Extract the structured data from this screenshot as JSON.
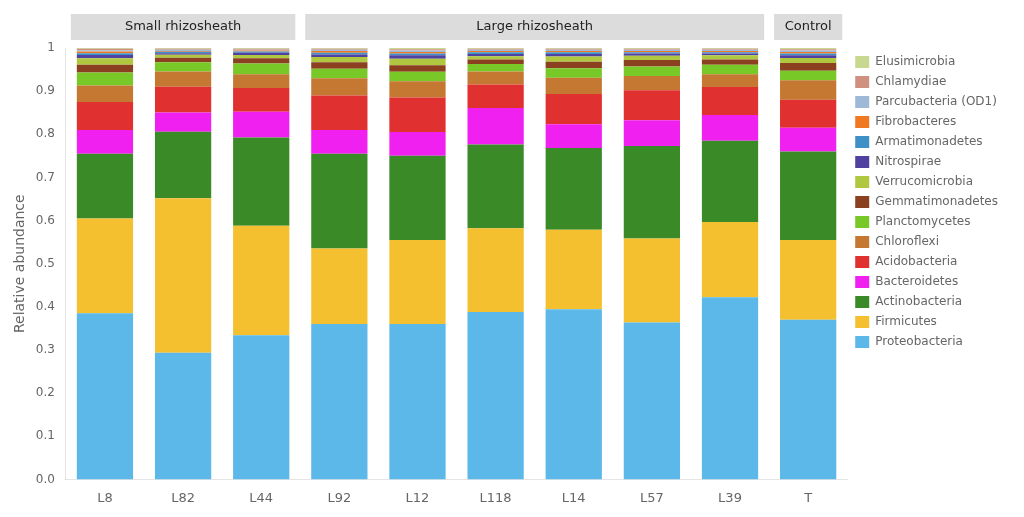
{
  "chart_data": {
    "type": "bar",
    "stacked": true,
    "ylabel": "Relative abundance",
    "categories": [
      "L8",
      "L82",
      "L44",
      "L92",
      "L12",
      "L118",
      "L14",
      "L57",
      "L39",
      "T"
    ],
    "series": [
      {
        "name": "Proteobacteria",
        "color": "#5BB8E8",
        "values": [
          0.385,
          0.293532,
          0.333998,
          0.36,
          0.36,
          0.38806,
          0.394212,
          0.363908,
          0.422465,
          0.37
        ]
      },
      {
        "name": "Firmicutes",
        "color": "#F5C030",
        "values": [
          0.22,
          0.358209,
          0.254237,
          0.175,
          0.195,
          0.19403,
          0.184631,
          0.194417,
          0.173956,
          0.185
        ]
      },
      {
        "name": "Actinobacteria",
        "color": "#3A8B28",
        "values": [
          0.15,
          0.154229,
          0.204387,
          0.22,
          0.195,
          0.19403,
          0.189621,
          0.214357,
          0.188867,
          0.205
        ]
      },
      {
        "name": "Bacteroidetes",
        "color": "#F020F0",
        "values": [
          0.055,
          0.044776,
          0.059821,
          0.055,
          0.055,
          0.084577,
          0.05489,
          0.059821,
          0.059642,
          0.055
        ]
      },
      {
        "name": "Acidobacteria",
        "color": "#E03030",
        "values": [
          0.065,
          0.059701,
          0.054835,
          0.08,
          0.08,
          0.054726,
          0.06986,
          0.069791,
          0.064612,
          0.065
        ]
      },
      {
        "name": "Chloroflexi",
        "color": "#C47832",
        "values": [
          0.038,
          0.034826,
          0.031904,
          0.04,
          0.038,
          0.029851,
          0.037924,
          0.032901,
          0.029821,
          0.045
        ]
      },
      {
        "name": "Planctomycetes",
        "color": "#78C828",
        "values": [
          0.03,
          0.021891,
          0.024925,
          0.022,
          0.022,
          0.01791,
          0.021956,
          0.021934,
          0.021869,
          0.022
        ]
      },
      {
        "name": "Gemmatimonadetes",
        "color": "#8B4020",
        "values": [
          0.018,
          0.00995,
          0.011964,
          0.015,
          0.015,
          0.00995,
          0.01497,
          0.014955,
          0.011928,
          0.018
        ]
      },
      {
        "name": "Verrucomicrobia",
        "color": "#B0C840",
        "values": [
          0.015,
          0.006965,
          0.007976,
          0.012,
          0.015,
          0.00796,
          0.011976,
          0.00997,
          0.00994,
          0.012
        ]
      },
      {
        "name": "Nitrospirae",
        "color": "#5040A0",
        "values": [
          0.008,
          0.00398,
          0.004985,
          0.006,
          0.008,
          0.004975,
          0.005988,
          0.004985,
          0.003976,
          0.006
        ]
      },
      {
        "name": "Armatimonadetes",
        "color": "#4090C8",
        "values": [
          0.004,
          0.002985,
          0.002991,
          0.004,
          0.004,
          0.00398,
          0.003992,
          0.002991,
          0.002982,
          0.004
        ]
      },
      {
        "name": "Fibrobacteres",
        "color": "#F07820",
        "values": [
          0.004,
          0.00199,
          0.001994,
          0.004,
          0.004,
          0.002985,
          0.002994,
          0.002991,
          0.002982,
          0.004
        ]
      },
      {
        "name": "Parcubacteria (OD1)",
        "color": "#9EB8D8",
        "values": [
          0.003,
          0.002985,
          0.001994,
          0.003,
          0.003,
          0.002985,
          0.002994,
          0.002991,
          0.002982,
          0.003
        ]
      },
      {
        "name": "Chlamydiae",
        "color": "#D09080",
        "values": [
          0.003,
          0.00199,
          0.001994,
          0.002,
          0.003,
          0.00199,
          0.001996,
          0.001994,
          0.001988,
          0.003
        ]
      },
      {
        "name": "Elusimicrobia",
        "color": "#C8D890",
        "values": [
          0.002,
          0.00199,
          0.001994,
          0.002,
          0.003,
          0.00199,
          0.001996,
          0.001994,
          0.001988,
          0.003
        ]
      }
    ],
    "ylim": [
      0,
      1.0
    ],
    "yticks": [
      {
        "value": 0,
        "label": "0.0"
      },
      0.1,
      0.2,
      0.3,
      0.4,
      0.5,
      0.6,
      0.7,
      0.8,
      0.9,
      1
    ],
    "grid": false,
    "legend": "right",
    "groups": [
      {
        "label": "Small rhizosheath",
        "categories": [
          "L8",
          "L82",
          "L44"
        ]
      },
      {
        "label": "Large rhizosheath",
        "categories": [
          "L92",
          "L12",
          "L118",
          "L14",
          "L57",
          "L39"
        ]
      },
      {
        "label": "Control",
        "categories": [
          "T"
        ]
      }
    ]
  }
}
